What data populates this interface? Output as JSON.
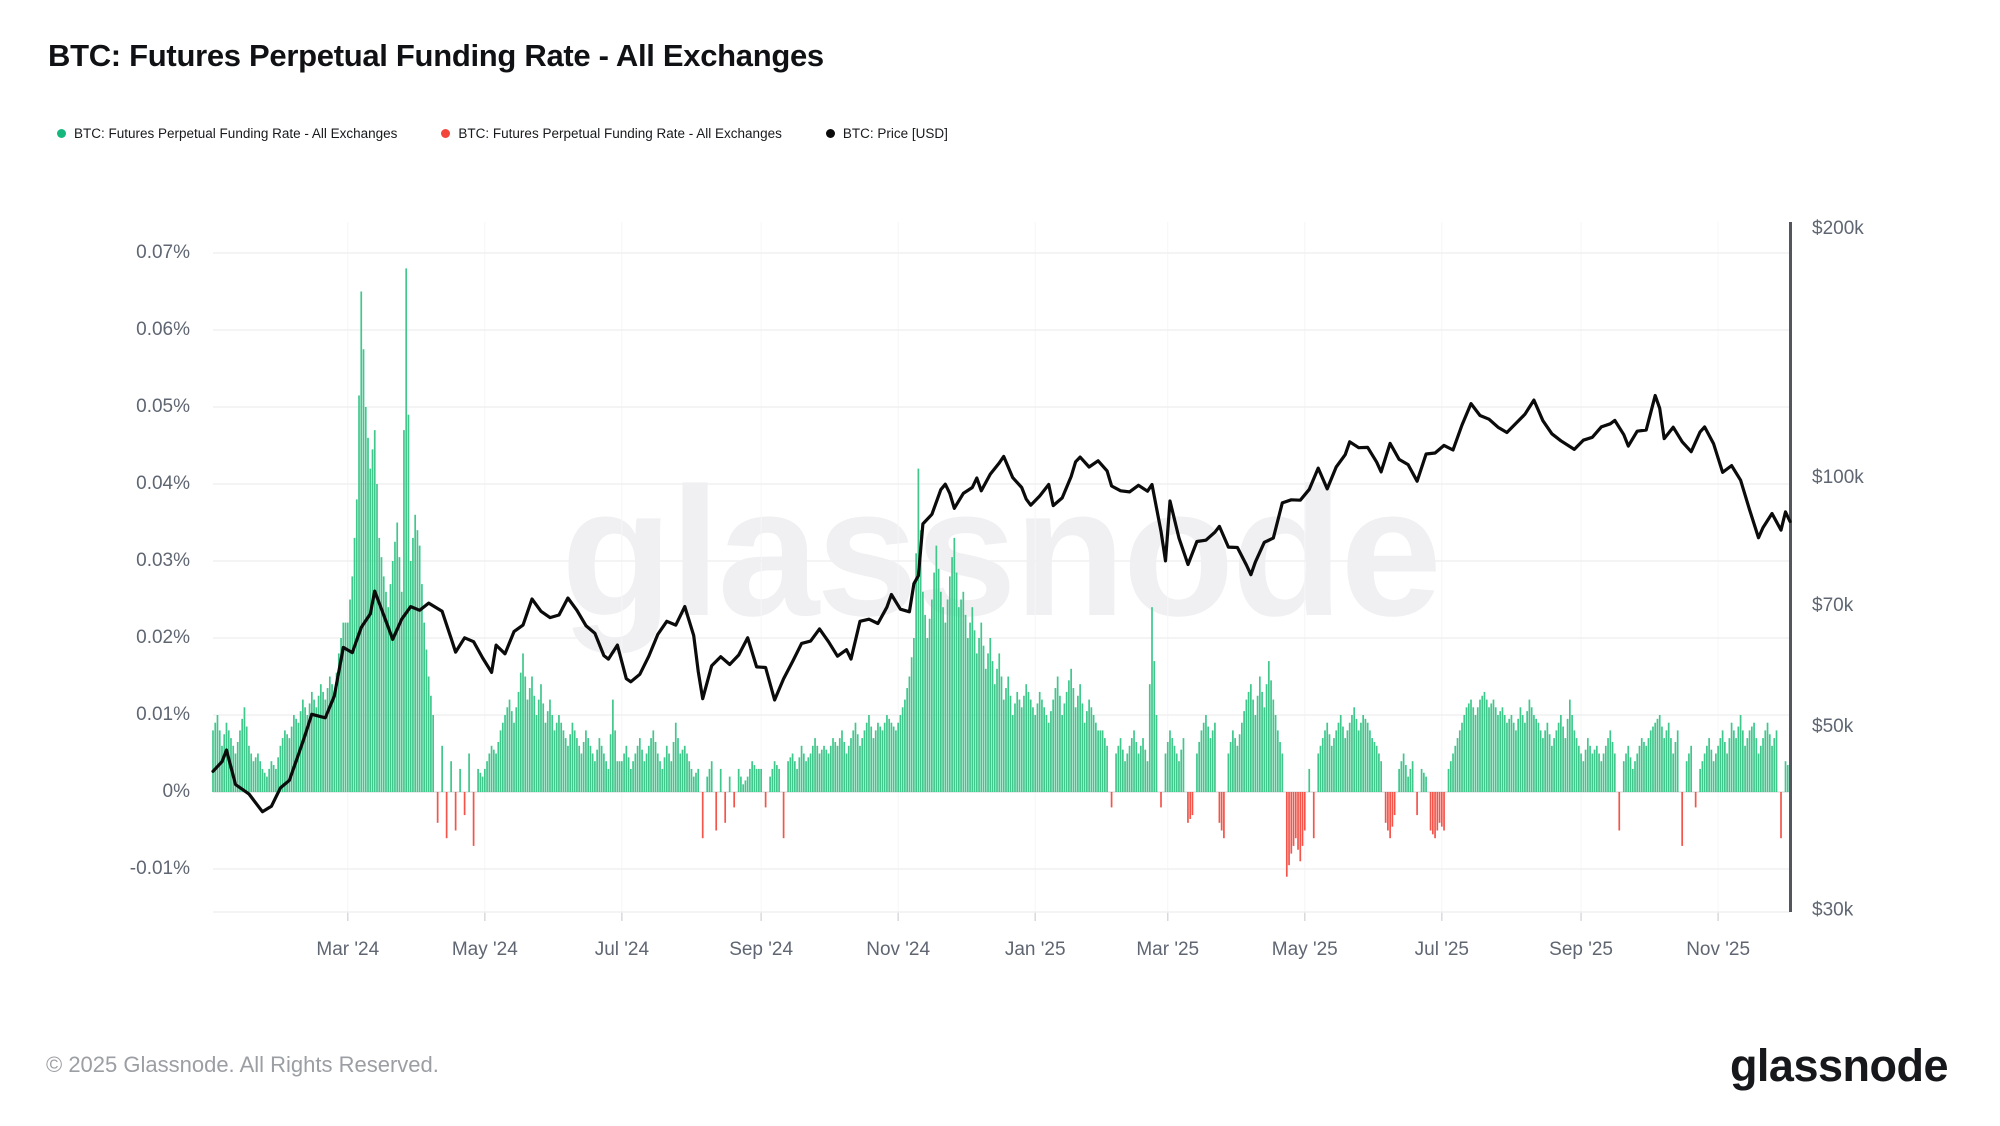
{
  "header": {
    "title": "BTC: Futures Perpetual Funding Rate - All Exchanges"
  },
  "legend": [
    {
      "label": "BTC: Futures Perpetual Funding Rate - All Exchanges",
      "color": "#14b87d"
    },
    {
      "label": "BTC: Futures Perpetual Funding Rate - All Exchanges",
      "color": "#f4453a"
    },
    {
      "label": "BTC: Price [USD]",
      "color": "#0b0b0c"
    }
  ],
  "watermark": "glassnode",
  "footer": {
    "copyright": "© 2025 Glassnode. All Rights Reserved.",
    "logo": "glassnode"
  },
  "chart_data": {
    "type": "bar+line",
    "description": "Daily perpetual futures funding rate bars (green positive / red negative, left % axis) with BTC price line (right log USD axis). Time span Jan 2024 - early Dec 2025, sampled every 2 days.",
    "x_start": "2024-01-01",
    "x_step_days": 2,
    "colors": {
      "bar_positive": "#40c78c",
      "bar_negative": "#f4544a",
      "price_line": "#0b0b0c",
      "grid": "#f0f0f2",
      "grid_zero": "#e3e3e6",
      "grid_vertical": "#f6f6f8",
      "axis_text": "#5f6672",
      "price_axis_line": "#54565d",
      "tick": "#d8d9dc"
    },
    "left_axis": {
      "title": "Funding rate (%)",
      "tick_labels": [
        "0.07%",
        "0.06%",
        "0.05%",
        "0.04%",
        "0.03%",
        "0.02%",
        "0.01%",
        "0%",
        "-0.01%"
      ],
      "tick_values_pct": [
        0.07,
        0.06,
        0.05,
        0.04,
        0.03,
        0.02,
        0.01,
        0,
        -0.01
      ],
      "range_pct": [
        -0.015,
        0.074
      ],
      "grid": true
    },
    "right_axis": {
      "title": "BTC Price [USD]",
      "tick_labels": [
        "$200k",
        "$100k",
        "$70k",
        "$50k",
        "$30k"
      ],
      "tick_values_usd_k": [
        200,
        100,
        70,
        50,
        30
      ],
      "scale": "log"
    },
    "x_axis": {
      "tick_labels": [
        "Mar '24",
        "May '24",
        "Jul '24",
        "Sep '24",
        "Nov '24",
        "Jan '25",
        "Mar '25",
        "May '25",
        "Jul '25",
        "Sep '25",
        "Nov '25"
      ],
      "tick_indices": [
        30,
        60.5,
        91,
        122,
        152.5,
        183,
        212.5,
        243,
        273.5,
        304.5,
        335
      ]
    },
    "funding_scale_pct": 0.001,
    "funding_rate_milli_pct": [
      8,
      10,
      6,
      9,
      7,
      5,
      8,
      11,
      6,
      4,
      5,
      3,
      2,
      4,
      3,
      6,
      8,
      7,
      10,
      9,
      12,
      10,
      13,
      11,
      14,
      12,
      15,
      13,
      18,
      22,
      22,
      28,
      38,
      65,
      50,
      42,
      47,
      33,
      28,
      24,
      30,
      35,
      26,
      68,
      30,
      36,
      32,
      22,
      15,
      10,
      -4,
      6,
      -6,
      4,
      -5,
      3,
      -3,
      5,
      -7,
      3,
      2,
      4,
      6,
      5,
      8,
      10,
      12,
      9,
      13,
      18,
      12,
      15,
      10,
      14,
      9,
      12,
      8,
      10,
      8,
      6,
      9,
      7,
      5,
      8,
      6,
      4,
      7,
      5,
      3,
      12,
      4,
      4,
      6,
      3,
      5,
      7,
      4,
      6,
      8,
      5,
      3,
      6,
      4,
      9,
      5,
      6,
      4,
      2,
      3,
      -6,
      2,
      4,
      -5,
      3,
      -4,
      2,
      -2,
      3,
      1,
      2,
      4,
      3,
      3,
      -2,
      2,
      4,
      3,
      -6,
      4,
      5,
      3,
      6,
      4,
      5,
      7,
      5,
      6,
      5,
      7,
      6,
      8,
      5,
      7,
      9,
      6,
      8,
      10,
      7,
      9,
      8,
      10,
      9,
      8,
      10,
      12,
      15,
      20,
      42,
      26,
      20,
      25,
      32,
      26,
      22,
      28,
      33,
      24,
      26,
      20,
      24,
      18,
      22,
      16,
      20,
      14,
      18,
      12,
      15,
      10,
      13,
      11,
      14,
      12,
      10,
      13,
      11,
      9,
      12,
      15,
      10,
      13,
      16,
      11,
      14,
      9,
      12,
      10,
      8,
      8,
      6,
      -2,
      5,
      7,
      4,
      6,
      8,
      5,
      7,
      4,
      24,
      10,
      -2,
      5,
      8,
      6,
      4,
      7,
      -4,
      -3,
      5,
      8,
      10,
      7,
      9,
      -4,
      -6,
      5,
      8,
      6,
      9,
      12,
      14,
      10,
      15,
      11,
      17,
      12,
      8,
      5,
      -11,
      -8,
      -6,
      -9,
      -5,
      3,
      -6,
      5,
      7,
      9,
      6,
      8,
      10,
      7,
      9,
      11,
      8,
      10,
      9,
      7,
      6,
      4,
      -4,
      -6,
      -3,
      3,
      5,
      2,
      4,
      -3,
      3,
      2,
      -5,
      -6,
      -4,
      -5,
      3,
      5,
      7,
      9,
      11,
      12,
      10,
      12,
      13,
      11,
      12,
      10,
      11,
      9,
      10,
      8,
      11,
      9,
      12,
      10,
      9,
      7,
      9,
      6,
      8,
      10,
      7,
      12,
      8,
      6,
      4,
      7,
      5,
      6,
      4,
      6,
      8,
      5,
      -5,
      4,
      6,
      3,
      5,
      7,
      6,
      8,
      9,
      10,
      7,
      9,
      5,
      8,
      -7,
      4,
      6,
      -2,
      3,
      5,
      7,
      4,
      6,
      8,
      5,
      9,
      7,
      10,
      6,
      8,
      9,
      5,
      7,
      9,
      6,
      8,
      -6,
      4,
      3
    ],
    "price_usd_k_waypoints": [
      [
        0,
        44.2
      ],
      [
        2,
        45.4
      ],
      [
        3,
        46.9
      ],
      [
        5,
        42.6
      ],
      [
        8,
        41.5
      ],
      [
        11,
        39.5
      ],
      [
        13,
        40.1
      ],
      [
        15,
        42.2
      ],
      [
        17,
        43.1
      ],
      [
        20,
        48.0
      ],
      [
        22,
        51.8
      ],
      [
        25,
        51.3
      ],
      [
        27,
        54.5
      ],
      [
        29,
        62.4
      ],
      [
        31,
        61.5
      ],
      [
        33,
        66.0
      ],
      [
        35,
        68.5
      ],
      [
        36,
        73.0
      ],
      [
        38,
        68.3
      ],
      [
        40,
        63.8
      ],
      [
        42,
        67.5
      ],
      [
        44,
        69.9
      ],
      [
        46,
        69.2
      ],
      [
        48,
        70.6
      ],
      [
        51,
        69.0
      ],
      [
        53,
        64.0
      ],
      [
        54,
        61.6
      ],
      [
        56,
        64.1
      ],
      [
        58,
        63.4
      ],
      [
        60,
        60.6
      ],
      [
        62,
        58.2
      ],
      [
        63,
        62.8
      ],
      [
        65,
        61.3
      ],
      [
        67,
        65.2
      ],
      [
        69,
        66.4
      ],
      [
        71,
        71.4
      ],
      [
        73,
        69.0
      ],
      [
        75,
        67.8
      ],
      [
        77,
        68.3
      ],
      [
        79,
        71.6
      ],
      [
        81,
        69.2
      ],
      [
        83,
        66.3
      ],
      [
        85,
        64.9
      ],
      [
        87,
        61.0
      ],
      [
        88,
        60.4
      ],
      [
        90,
        62.8
      ],
      [
        92,
        57.2
      ],
      [
        93,
        56.7
      ],
      [
        95,
        57.9
      ],
      [
        97,
        60.9
      ],
      [
        99,
        64.7
      ],
      [
        101,
        67.1
      ],
      [
        103,
        66.4
      ],
      [
        105,
        69.9
      ],
      [
        107,
        64.5
      ],
      [
        108,
        58.4
      ],
      [
        109,
        54.1
      ],
      [
        111,
        59.3
      ],
      [
        113,
        60.8
      ],
      [
        115,
        59.5
      ],
      [
        117,
        61.1
      ],
      [
        119,
        64.1
      ],
      [
        121,
        59.1
      ],
      [
        123,
        59.0
      ],
      [
        125,
        53.9
      ],
      [
        127,
        57.2
      ],
      [
        129,
        60.0
      ],
      [
        131,
        63.1
      ],
      [
        133,
        63.5
      ],
      [
        135,
        65.7
      ],
      [
        137,
        63.4
      ],
      [
        139,
        60.9
      ],
      [
        141,
        62.0
      ],
      [
        142,
        60.4
      ],
      [
        144,
        67.1
      ],
      [
        146,
        67.5
      ],
      [
        148,
        66.7
      ],
      [
        150,
        69.8
      ],
      [
        151,
        72.3
      ],
      [
        153,
        69.4
      ],
      [
        155,
        68.9
      ],
      [
        156,
        74.5
      ],
      [
        157,
        76.2
      ],
      [
        158,
        88.0
      ],
      [
        160,
        90.4
      ],
      [
        162,
        96.8
      ],
      [
        163,
        98.3
      ],
      [
        164,
        95.8
      ],
      [
        165,
        91.9
      ],
      [
        167,
        95.8
      ],
      [
        169,
        97.4
      ],
      [
        170,
        100.0
      ],
      [
        171,
        96.5
      ],
      [
        173,
        101.1
      ],
      [
        175,
        104.3
      ],
      [
        176,
        106.2
      ],
      [
        178,
        100.1
      ],
      [
        180,
        97.4
      ],
      [
        181,
        94.3
      ],
      [
        182,
        92.7
      ],
      [
        184,
        95.1
      ],
      [
        186,
        98.2
      ],
      [
        187,
        92.6
      ],
      [
        189,
        94.6
      ],
      [
        191,
        100.4
      ],
      [
        192,
        104.6
      ],
      [
        193,
        106.0
      ],
      [
        195,
        103.1
      ],
      [
        197,
        104.9
      ],
      [
        199,
        102.0
      ],
      [
        200,
        97.8
      ],
      [
        202,
        96.5
      ],
      [
        204,
        96.2
      ],
      [
        206,
        98.0
      ],
      [
        208,
        96.4
      ],
      [
        209,
        98.2
      ],
      [
        211,
        86.2
      ],
      [
        212,
        79.4
      ],
      [
        213,
        93.8
      ],
      [
        215,
        84.6
      ],
      [
        217,
        78.6
      ],
      [
        219,
        83.8
      ],
      [
        221,
        84.1
      ],
      [
        223,
        86.0
      ],
      [
        224,
        87.4
      ],
      [
        226,
        82.5
      ],
      [
        228,
        82.4
      ],
      [
        230,
        78.5
      ],
      [
        231,
        76.4
      ],
      [
        232,
        79.1
      ],
      [
        234,
        83.6
      ],
      [
        236,
        84.6
      ],
      [
        238,
        93.3
      ],
      [
        240,
        94.1
      ],
      [
        242,
        94.0
      ],
      [
        244,
        96.9
      ],
      [
        246,
        102.8
      ],
      [
        248,
        97.0
      ],
      [
        250,
        103.1
      ],
      [
        252,
        106.7
      ],
      [
        253,
        110.6
      ],
      [
        255,
        108.8
      ],
      [
        257,
        108.9
      ],
      [
        259,
        104.5
      ],
      [
        260,
        101.7
      ],
      [
        262,
        110.1
      ],
      [
        264,
        105.3
      ],
      [
        266,
        103.8
      ],
      [
        268,
        99.1
      ],
      [
        270,
        106.9
      ],
      [
        272,
        107.2
      ],
      [
        274,
        109.5
      ],
      [
        276,
        108.1
      ],
      [
        278,
        115.9
      ],
      [
        280,
        123.0
      ],
      [
        282,
        119.0
      ],
      [
        284,
        117.8
      ],
      [
        286,
        115.2
      ],
      [
        288,
        113.5
      ],
      [
        290,
        116.4
      ],
      [
        292,
        119.4
      ],
      [
        294,
        124.2
      ],
      [
        296,
        117.3
      ],
      [
        298,
        113.1
      ],
      [
        300,
        110.9
      ],
      [
        303,
        108.3
      ],
      [
        305,
        111.1
      ],
      [
        307,
        112.0
      ],
      [
        309,
        115.3
      ],
      [
        311,
        116.3
      ],
      [
        312,
        117.4
      ],
      [
        314,
        112.8
      ],
      [
        315,
        109.3
      ],
      [
        317,
        113.9
      ],
      [
        319,
        114.3
      ],
      [
        321,
        125.8
      ],
      [
        322,
        121.4
      ],
      [
        323,
        111.6
      ],
      [
        325,
        115.2
      ],
      [
        327,
        110.6
      ],
      [
        329,
        107.6
      ],
      [
        331,
        113.7
      ],
      [
        332,
        115.3
      ],
      [
        334,
        110.0
      ],
      [
        336,
        101.6
      ],
      [
        338,
        103.5
      ],
      [
        340,
        99.4
      ],
      [
        342,
        91.5
      ],
      [
        344,
        84.7
      ],
      [
        345,
        87.1
      ],
      [
        347,
        90.6
      ],
      [
        349,
        86.5
      ],
      [
        350,
        91.0
      ],
      [
        351,
        88.6
      ]
    ]
  }
}
